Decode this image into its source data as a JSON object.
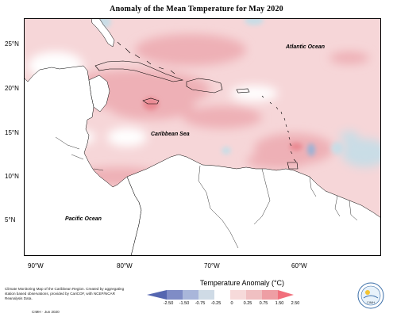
{
  "title": "Anomaly of the Mean Temperature for May 2020",
  "map": {
    "labels": {
      "atlantic": "Atlantic Ocean",
      "caribbean": "Caribbean Sea",
      "pacific": "Pacific Ocean"
    },
    "lat_ticks": [
      "25°N",
      "20°N",
      "15°N",
      "10°N",
      "5°N"
    ],
    "lon_ticks": [
      "90°W",
      "80°W",
      "70°W",
      "60°W"
    ]
  },
  "legend": {
    "title": "Temperature Anomaly (°C)",
    "ticks": [
      "-2.50",
      "-1.50",
      "-0.75",
      "-0.25",
      "0",
      "0.25",
      "0.75",
      "1.50",
      "2.50"
    ],
    "colors": [
      "#5566b0",
      "#7f8cc6",
      "#a9b6da",
      "#cfdbe6",
      "#ffffff",
      "#f6dada",
      "#f0c0c2",
      "#ee9ea4",
      "#f16f7c"
    ]
  },
  "footer": {
    "description": "Climate Monitoring Map of the Caribbean Region. Created by aggregating station based observations, provided by CariCOF, with NCEP/NCAR Reanalysis Data.",
    "credit": "CIMH · Jun 2020"
  },
  "logo": {
    "text": "CIMH"
  },
  "colors": {
    "base_anomaly": "#f6d6d8",
    "warm": "#eeb0b6",
    "hot": "#ea8a93",
    "cool": "#c9dde6",
    "cold": "#9cb2d5",
    "land": "#ffffff"
  }
}
